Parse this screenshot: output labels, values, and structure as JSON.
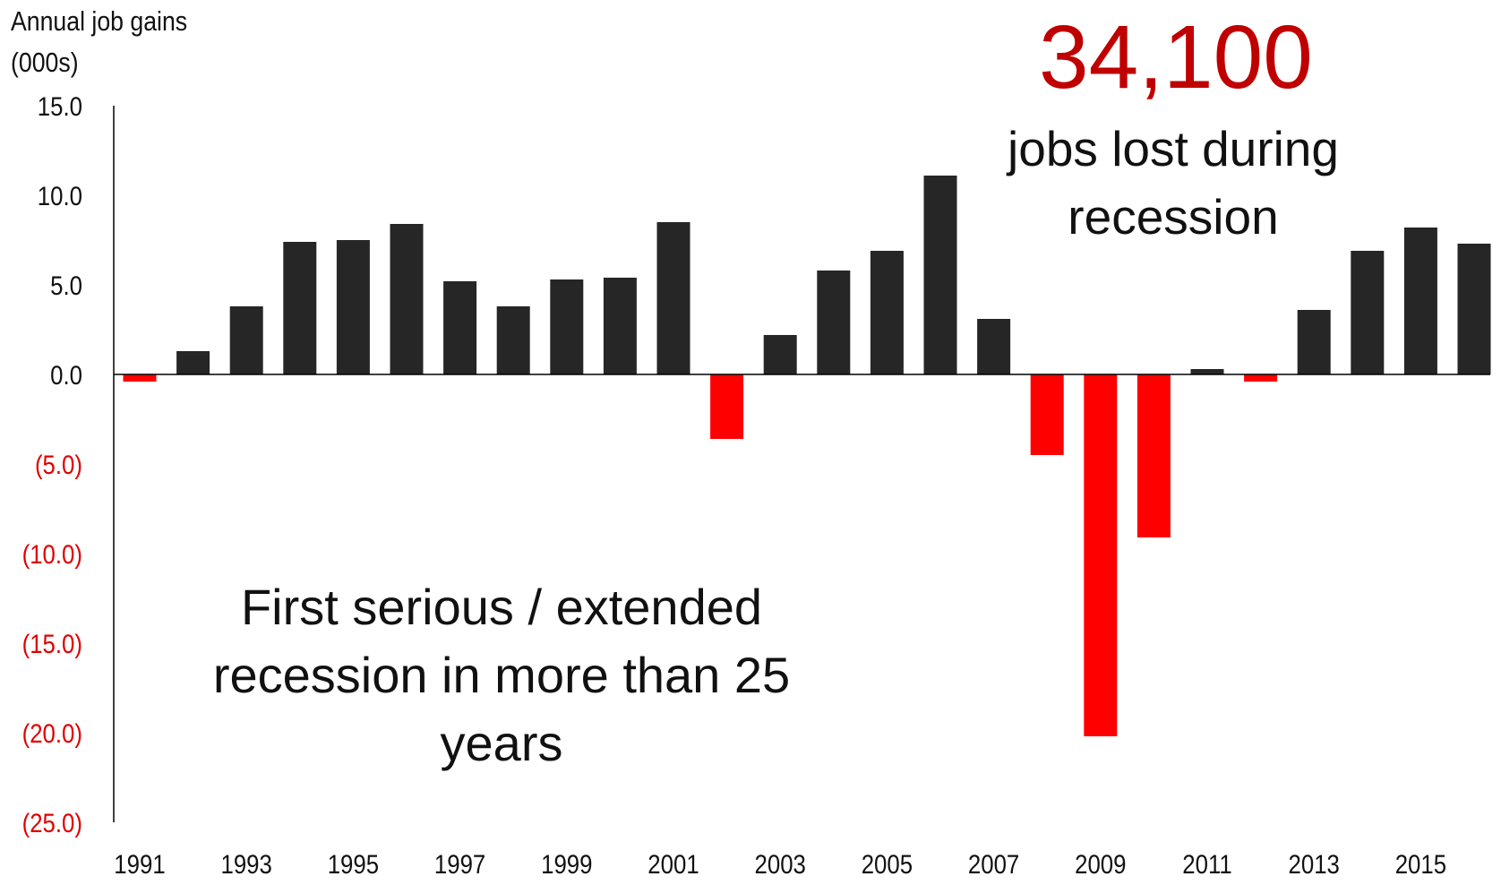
{
  "y_axis_label_line1": "Annual job gains",
  "y_axis_label_line2": "(000s)",
  "annotation_number": "34,100",
  "annotation_text_line1": "jobs lost during",
  "annotation_text_line2": "recession",
  "note_line1": "First serious / extended",
  "note_line2": "recession in more than 25",
  "note_line3": "years",
  "colors": {
    "positive_bar": "#262626",
    "negative_bar": "#ff0000",
    "negative_tick_label": "#e00000",
    "annotation_number": "#c00000"
  },
  "chart_data": {
    "type": "bar",
    "categories": [
      "1991",
      "1992",
      "1993",
      "1994",
      "1995",
      "1996",
      "1997",
      "1998",
      "1999",
      "2000",
      "2001",
      "2002",
      "2003",
      "2004",
      "2005",
      "2006",
      "2007",
      "2008",
      "2009",
      "2010",
      "2011",
      "2012",
      "2013",
      "2014",
      "2015",
      "2016"
    ],
    "values": [
      -0.4,
      1.3,
      3.8,
      7.4,
      7.5,
      8.4,
      5.2,
      3.8,
      5.3,
      5.4,
      8.5,
      -3.6,
      2.2,
      5.8,
      6.9,
      11.1,
      3.1,
      -4.5,
      -20.2,
      -9.1,
      0.3,
      -0.4,
      3.6,
      6.9,
      8.2,
      7.3
    ],
    "ylim": [
      -25,
      15
    ],
    "y_ticks": [
      "15.0",
      "10.0",
      "5.0",
      "0.0",
      "(5.0)",
      "(10.0)",
      "(15.0)",
      "(20.0)",
      "(25.0)"
    ],
    "y_tick_values": [
      15,
      10,
      5,
      0,
      -5,
      -10,
      -15,
      -20,
      -25
    ],
    "x_tick_labels": [
      "1991",
      "1993",
      "1995",
      "1997",
      "1999",
      "2001",
      "2003",
      "2005",
      "2007",
      "2009",
      "2011",
      "2013",
      "2015"
    ],
    "ylabel": "Annual job gains (000s)",
    "grid": false,
    "legend": "none"
  }
}
